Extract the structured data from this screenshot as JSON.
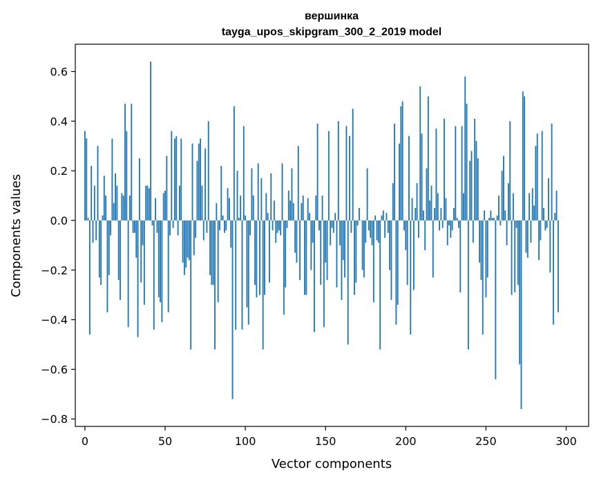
{
  "chart_data": {
    "type": "bar",
    "title": "вершинка",
    "subtitle": "tayga_upos_skipgram_300_2_2019 model",
    "xlabel": "Vector components",
    "ylabel": "Components values",
    "xlim": [
      -6,
      314
    ],
    "ylim": [
      -0.83,
      0.71
    ],
    "xticks": [
      0,
      50,
      100,
      150,
      200,
      250,
      300
    ],
    "yticks": [
      -0.8,
      -0.6,
      -0.4,
      -0.2,
      0.0,
      0.2,
      0.4,
      0.6
    ],
    "ytick_labels": [
      "−0.8",
      "−0.6",
      "−0.4",
      "−0.2",
      "0.0",
      "0.2",
      "0.4",
      "0.6"
    ],
    "bar_color": "#1f77b4",
    "grid": false,
    "values": [
      0.36,
      0.33,
      0.01,
      -0.46,
      0.22,
      -0.09,
      0.14,
      -0.08,
      0.3,
      -0.23,
      -0.26,
      0.02,
      0.18,
      0.1,
      -0.37,
      -0.22,
      -0.06,
      0.33,
      0.07,
      0.19,
      0.14,
      -0.24,
      -0.32,
      0.11,
      0.1,
      0.47,
      0.36,
      -0.43,
      0.1,
      0.47,
      -0.05,
      -0.05,
      -0.15,
      -0.47,
      0.25,
      -0.25,
      -0.1,
      -0.34,
      0.14,
      0.14,
      0.13,
      0.64,
      -0.02,
      -0.44,
      0.09,
      -0.05,
      -0.31,
      -0.33,
      -0.41,
      0.11,
      0.12,
      0.26,
      -0.37,
      -0.06,
      0.36,
      -0.03,
      0.33,
      0.34,
      -0.06,
      0.14,
      0.33,
      -0.17,
      -0.22,
      -0.19,
      -0.15,
      -0.16,
      -0.52,
      0.31,
      -0.14,
      -0.07,
      0.24,
      0.31,
      0.33,
      0.14,
      -0.08,
      0.29,
      -0.05,
      0.4,
      -0.22,
      -0.26,
      -0.26,
      -0.52,
      0.07,
      -0.33,
      -0.04,
      0.22,
      0.02,
      -0.05,
      -0.04,
      0.13,
      0.09,
      -0.11,
      -0.72,
      0.46,
      -0.44,
      0.2,
      0.01,
      0.1,
      -0.44,
      0.38,
      0.02,
      -0.35,
      -0.42,
      -0.06,
      0.21,
      0.1,
      -0.26,
      -0.31,
      0.23,
      -0.3,
      0.17,
      -0.52,
      -0.3,
      0.11,
      0.03,
      -0.25,
      0.19,
      -0.04,
      0.08,
      -0.09,
      -0.05,
      -0.04,
      -0.06,
      0.23,
      -0.38,
      -0.27,
      -0.03,
      0.12,
      0.08,
      0.21,
      0.07,
      -0.13,
      -0.17,
      0.3,
      -0.24,
      0.07,
      0.1,
      -0.3,
      -0.3,
      0.09,
      0.03,
      -0.2,
      -0.09,
      -0.45,
      0.1,
      0.39,
      -0.04,
      -0.26,
      0.1,
      -0.43,
      -0.17,
      -0.24,
      0.36,
      -0.1,
      -0.03,
      -0.05,
      0.03,
      -0.27,
      0.4,
      -0.1,
      -0.32,
      -0.16,
      -0.23,
      0.38,
      -0.5,
      0.34,
      -0.05,
      0.45,
      -0.3,
      -0.25,
      -0.02,
      0.05,
      0.0,
      -0.2,
      -0.23,
      -0.09,
      0.21,
      -0.04,
      -0.07,
      -0.1,
      -0.33,
      0.02,
      -0.08,
      -0.09,
      -0.52,
      0.02,
      0.04,
      -0.07,
      0.03,
      -0.05,
      -0.2,
      -0.32,
      0.15,
      0.39,
      -0.42,
      -0.34,
      0.31,
      0.46,
      0.48,
      -0.04,
      -0.12,
      -0.26,
      0.34,
      -0.46,
      0.09,
      -0.28,
      0.05,
      0.15,
      -0.07,
      0.54,
      0.35,
      0.04,
      -0.12,
      0.21,
      0.5,
      0.08,
      0.14,
      -0.23,
      0.05,
      0.37,
      0.11,
      -0.04,
      0.05,
      -0.03,
      0.41,
      0.09,
      -0.1,
      -0.02,
      -0.07,
      -0.04,
      0.05,
      0.38,
      0.01,
      -0.03,
      -0.29,
      0.38,
      0.11,
      0.58,
      0.47,
      -0.52,
      0.24,
      0.28,
      -0.09,
      0.41,
      0.32,
      0.25,
      -0.17,
      -0.24,
      -0.46,
      0.04,
      -0.31,
      -0.23,
      0.01,
      0.04,
      0.01,
      0.01,
      -0.64,
      0.02,
      0.1,
      -0.02,
      0.2,
      0.26,
      0.04,
      -0.1,
      0.15,
      0.4,
      -0.3,
      0.11,
      -0.29,
      -0.03,
      -0.26,
      -0.58,
      -0.76,
      0.52,
      0.5,
      -0.13,
      -0.15,
      0.11,
      -0.09,
      0.13,
      0.06,
      0.3,
      0.35,
      -0.16,
      -0.08,
      0.36,
      0.05,
      -0.04,
      -0.03,
      0.17,
      -0.21,
      0.39,
      -0.42,
      0.03,
      0.12,
      -0.37
    ]
  }
}
